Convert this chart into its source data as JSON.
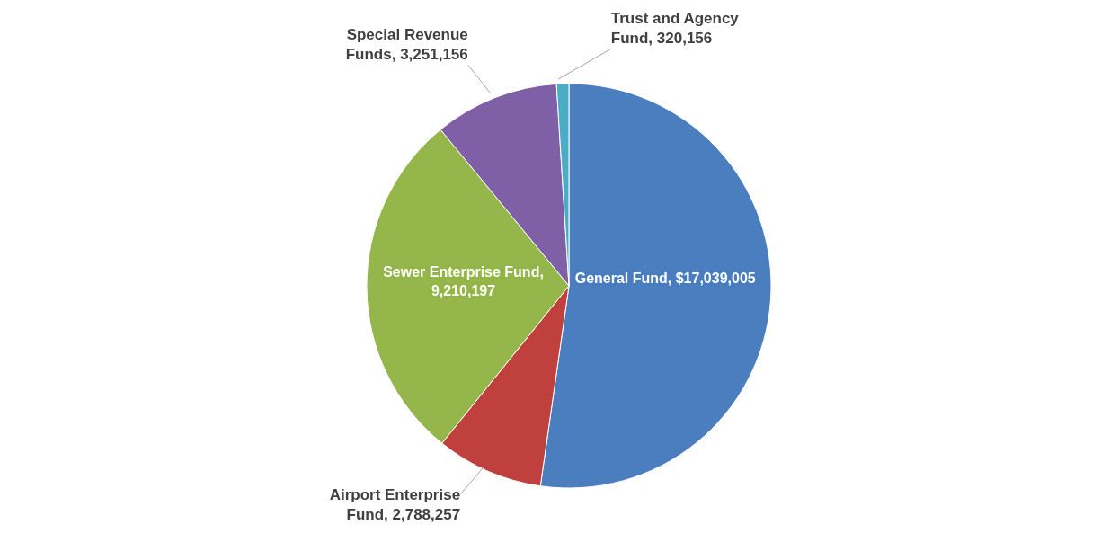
{
  "chart_data": {
    "type": "pie",
    "categories": [
      "General Fund",
      "Airport Enterprise Fund",
      "Sewer Enterprise Fund",
      "Special Revenue Funds",
      "Trust and Agency Fund"
    ],
    "values": [
      17039005,
      2788257,
      9210197,
      3251156,
      320156
    ],
    "value_labels": [
      ", $17,039,005",
      ", 2,788,257",
      ", 9,210,197",
      ", 3,251,156",
      ", 320,156"
    ],
    "colors": [
      "#4a7ebf",
      "#c0403e",
      "#94b64a",
      "#7f5fa6",
      "#4bacc6"
    ],
    "legend": false
  }
}
